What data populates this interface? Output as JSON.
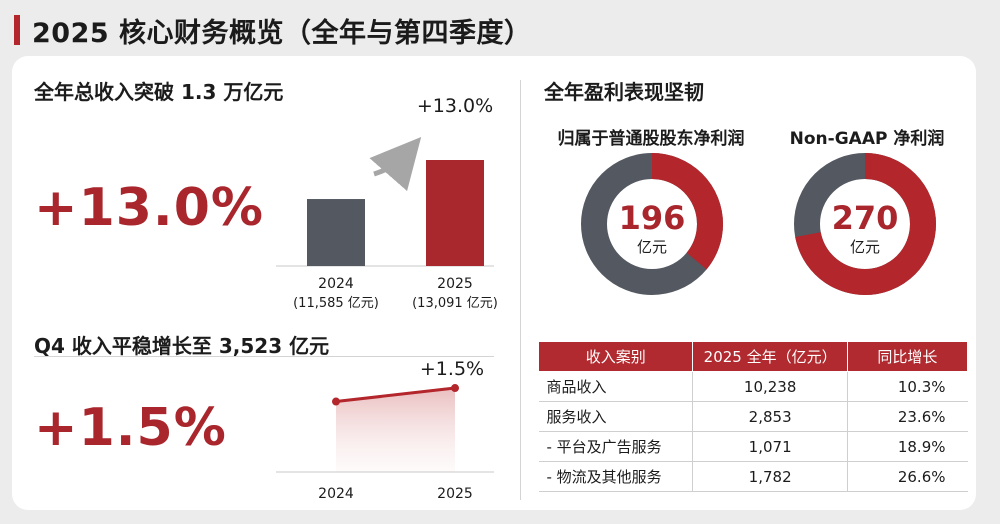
{
  "page": {
    "title": "2025 核心财务概览（全年与第四季度）"
  },
  "annual_revenue": {
    "section_title": "全年总收入突破 1.3 万亿元",
    "growth_big": "+13.0%",
    "growth_badge": "+13.0%"
  },
  "q4_revenue": {
    "section_title": "Q4 收入平稳增长至 3,523 亿元",
    "growth_big": "+1.5%",
    "growth_badge": "+1.5%"
  },
  "profit": {
    "section_title": "全年盈利表现坚韧",
    "donut_left": {
      "label": "归属于普通股股东净利润",
      "value": "196",
      "unit": "亿元"
    },
    "donut_right": {
      "label": "Non-GAAP 净利润",
      "value": "270",
      "unit": "亿元"
    }
  },
  "revenue_table": {
    "headers": [
      "收入案别",
      "2025 全年（亿元）",
      "同比增长"
    ],
    "rows": [
      [
        "商品收入",
        "10,238",
        "10.3%"
      ],
      [
        "服务收入",
        "2,853",
        "23.6%"
      ],
      [
        "- 平台及广告服务",
        "1,071",
        "18.9%"
      ],
      [
        "- 物流及其他服务",
        "1,782",
        "26.6%"
      ]
    ]
  },
  "colors": {
    "accent_red": "#b3262b",
    "bar_gray": "#545861",
    "bar_red": "#a8282d",
    "donut_gray": "#545861",
    "donut_red": "#b3262b"
  },
  "chart_data": [
    {
      "type": "bar",
      "title": "全年总收入突破 1.3 万亿元",
      "categories": [
        "2024",
        "2025"
      ],
      "category_sublabels": [
        "(11,585 亿元)",
        "(13,091 亿元)"
      ],
      "values": [
        11585,
        13091
      ],
      "unit": "亿元",
      "ylim": [
        9000,
        13400
      ],
      "annotation": "+13.0%"
    },
    {
      "type": "line",
      "title": "Q4 收入平稳增长至 3,523 亿元",
      "x": [
        "2024",
        "2025"
      ],
      "values": [
        3471,
        3523
      ],
      "unit": "亿元",
      "ylim": [
        3200,
        3600
      ],
      "annotation": "+1.5%"
    },
    {
      "type": "pie",
      "title": "归属于普通股股东净利润",
      "center_value": "196",
      "center_unit": "亿元",
      "slices": [
        {
          "name": "red-segment",
          "value": 0.36
        },
        {
          "name": "gray-segment",
          "value": 0.64
        }
      ]
    },
    {
      "type": "pie",
      "title": "Non-GAAP 净利润",
      "center_value": "270",
      "center_unit": "亿元",
      "slices": [
        {
          "name": "red-segment",
          "value": 0.72
        },
        {
          "name": "gray-segment",
          "value": 0.28
        }
      ]
    }
  ]
}
